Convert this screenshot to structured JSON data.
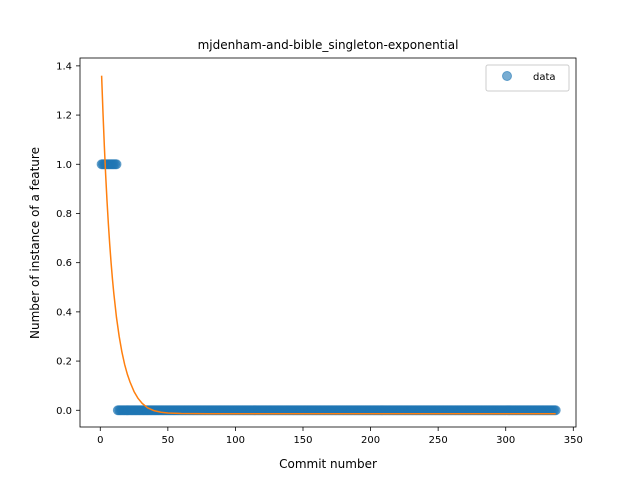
{
  "chart_data": {
    "type": "scatter",
    "title": "mjdenham-and-bible_singleton-exponential",
    "xlabel": "Commit number",
    "ylabel": "Number of instance of a feature",
    "xlim": [
      -15,
      352
    ],
    "ylim": [
      -0.068,
      1.432
    ],
    "xticks": [
      "0",
      "50",
      "100",
      "150",
      "200",
      "250",
      "300",
      "350"
    ],
    "xtick_values": [
      0,
      50,
      100,
      150,
      200,
      250,
      300,
      350
    ],
    "yticks": [
      "0.0",
      "0.2",
      "0.4",
      "0.6",
      "0.8",
      "1.0",
      "1.2",
      "1.4"
    ],
    "ytick_values": [
      0.0,
      0.2,
      0.4,
      0.6,
      0.8,
      1.0,
      1.2,
      1.4
    ],
    "grid": false,
    "legend": {
      "placement": "top-right",
      "entries": [
        "data"
      ]
    },
    "series": [
      {
        "name": "data",
        "kind": "points",
        "color": "#1f77b4",
        "opacity": 0.6,
        "segments": [
          {
            "x_from": 1,
            "x_to": 12,
            "y": 1.0
          },
          {
            "x_from": 13,
            "x_to": 337,
            "y": 0.0
          }
        ]
      },
      {
        "kind": "line",
        "color": "#ff7f0e",
        "x": [
          1,
          2,
          3,
          4,
          5,
          6,
          7,
          8,
          9,
          10,
          12,
          14,
          16,
          18,
          20,
          22,
          25,
          28,
          31,
          35,
          40,
          45,
          50,
          60,
          70,
          80,
          100,
          150,
          200,
          250,
          300,
          337
        ],
        "y": [
          1.36,
          1.21,
          1.075,
          0.955,
          0.85,
          0.757,
          0.674,
          0.6,
          0.534,
          0.476,
          0.377,
          0.3,
          0.237,
          0.187,
          0.147,
          0.115,
          0.076,
          0.048,
          0.028,
          0.01,
          -0.002,
          -0.008,
          -0.011,
          -0.013,
          -0.0135,
          -0.014,
          -0.014,
          -0.014,
          -0.014,
          -0.014,
          -0.014,
          -0.014
        ]
      }
    ]
  }
}
